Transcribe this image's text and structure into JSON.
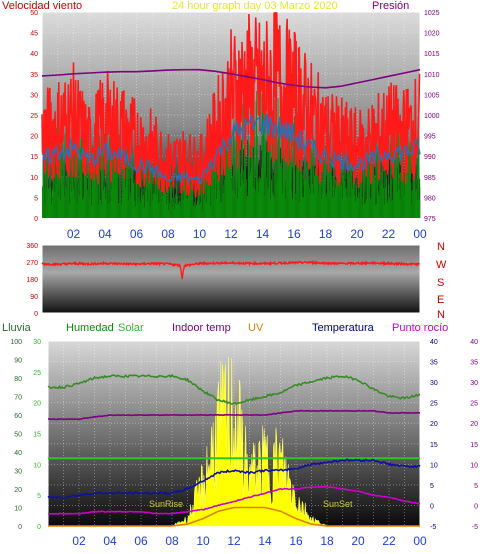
{
  "title": "24 hour graph day   03 Marzo 2020",
  "colors": {
    "wind": "#ff1a1a",
    "pressure": "#800080",
    "green": "#0a8a0a",
    "humidity": "#3a8a2a",
    "solar": "#2dbb2d",
    "indoor": "#800080",
    "uv": "#e08000",
    "temperature": "#000080",
    "dewpoint": "#cc00cc",
    "rain_axis": "#2dbb2d",
    "sun": "#ffff00",
    "sunlabel": "#cccc33",
    "hour": "#1f3fd6",
    "dir": "#cc0000"
  },
  "labels": {
    "wind": "Velocidad viento",
    "pressure": "Presión",
    "rain": "Lluvia",
    "humidity": "Humedad",
    "solar": "Solar",
    "indoor": "Indoor temp",
    "uv": "UV",
    "temperature": "Temperatura",
    "dewpoint": "Punto rocío",
    "sunrise": "SunRise",
    "sunset": "SunSet"
  },
  "hours": [
    "02",
    "04",
    "06",
    "08",
    "10",
    "12",
    "14",
    "16",
    "18",
    "20",
    "22",
    "00"
  ],
  "directions": [
    "N",
    "W",
    "S",
    "E",
    "N"
  ],
  "chart_data": [
    {
      "type": "line",
      "title": "24 hour graph day   03 Marzo 2020",
      "x": [
        0,
        1,
        2,
        3,
        4,
        5,
        6,
        7,
        8,
        9,
        10,
        11,
        12,
        13,
        14,
        15,
        16,
        17,
        18,
        19,
        20,
        21,
        22,
        23,
        24
      ],
      "ylim_left": [
        0,
        50
      ],
      "yticks_left": [
        0,
        5,
        10,
        15,
        20,
        25,
        30,
        35,
        40,
        45,
        50
      ],
      "ylim_right": [
        975,
        1025
      ],
      "yticks_right": [
        975,
        980,
        985,
        990,
        995,
        1000,
        1005,
        1010,
        1015,
        1020,
        1025
      ],
      "series": [
        {
          "name": "Velocidad viento",
          "axis": "left",
          "values": [
            22,
            25,
            27,
            20,
            26,
            24,
            21,
            19,
            15,
            16,
            14,
            23,
            33,
            36,
            35,
            37,
            33,
            28,
            23,
            21,
            19,
            21,
            24,
            23,
            26
          ]
        },
        {
          "name": "wind-average",
          "axis": "left",
          "values": [
            14,
            16,
            17,
            14,
            16,
            15,
            13,
            12,
            9,
            10,
            9,
            15,
            20,
            22,
            23,
            22,
            20,
            17,
            15,
            14,
            13,
            14,
            16,
            16,
            17
          ]
        },
        {
          "name": "wind-lull",
          "axis": "left",
          "values": [
            8,
            9,
            10,
            8,
            9,
            9,
            8,
            7,
            5,
            5,
            6,
            9,
            13,
            14,
            14,
            13,
            12,
            10,
            9,
            8,
            8,
            9,
            10,
            10,
            10
          ]
        },
        {
          "name": "Presión",
          "axis": "right",
          "values": [
            1009.5,
            1009.7,
            1010,
            1010.2,
            1010.4,
            1010.5,
            1010.5,
            1010.7,
            1010.9,
            1011,
            1011,
            1010.6,
            1010,
            1009.3,
            1008.6,
            1007.8,
            1007.2,
            1006.8,
            1006.6,
            1007,
            1007.8,
            1008.6,
            1009.4,
            1010.2,
            1011
          ]
        }
      ]
    },
    {
      "type": "line",
      "x": [
        0,
        1,
        2,
        3,
        4,
        5,
        6,
        7,
        8,
        9,
        10,
        11,
        12,
        13,
        14,
        15,
        16,
        17,
        18,
        19,
        20,
        21,
        22,
        23,
        24
      ],
      "ylim": [
        0,
        360
      ],
      "yticks": [
        0,
        90,
        180,
        270,
        360
      ],
      "series": [
        {
          "name": "direction",
          "values": [
            260,
            258,
            262,
            260,
            263,
            261,
            259,
            262,
            260,
            250,
            262,
            264,
            265,
            263,
            262,
            264,
            266,
            268,
            264,
            262,
            263,
            265,
            262,
            260,
            258
          ]
        }
      ]
    },
    {
      "type": "line",
      "x": [
        0,
        1,
        2,
        3,
        4,
        5,
        6,
        7,
        8,
        9,
        10,
        11,
        12,
        13,
        14,
        15,
        16,
        17,
        18,
        19,
        20,
        21,
        22,
        23,
        24
      ],
      "axis_rain": {
        "ylim": [
          0,
          30
        ],
        "yticks": [
          0,
          5,
          10,
          15,
          20,
          25,
          30
        ]
      },
      "axis_humidity": {
        "ylim": [
          0,
          100
        ],
        "yticks": [
          0,
          10,
          20,
          30,
          40,
          50,
          60,
          70,
          80,
          90,
          100
        ]
      },
      "axis_temp": {
        "ylim": [
          -5,
          40
        ],
        "yticks": [
          -5,
          0,
          5,
          10,
          15,
          20,
          25,
          30,
          35,
          40
        ]
      },
      "series": [
        {
          "name": "Humedad",
          "axis": "humidity",
          "values": [
            75,
            75,
            77,
            80,
            81,
            81,
            81,
            81,
            81,
            79,
            73,
            68,
            66,
            68,
            70,
            72,
            76,
            78,
            80,
            81,
            79,
            74,
            70,
            69,
            71
          ]
        },
        {
          "name": "Indoor temp",
          "axis": "temp",
          "values": [
            21,
            21,
            21,
            21.5,
            22,
            22,
            22,
            22,
            22,
            22,
            22,
            22,
            22,
            22,
            22,
            22.5,
            23,
            23,
            23,
            23,
            23,
            23,
            22.5,
            22.5,
            22.5
          ]
        },
        {
          "name": "Rain",
          "axis": "rain",
          "values": [
            11,
            11,
            11,
            11,
            11,
            11,
            11,
            11,
            11,
            11,
            11,
            11,
            11,
            11,
            11,
            11,
            11,
            11,
            11,
            11,
            11,
            11,
            11,
            11,
            11
          ]
        },
        {
          "name": "Temperatura",
          "axis": "temp",
          "values": [
            2,
            2,
            2.5,
            3,
            3,
            3,
            3,
            3,
            3,
            4,
            6,
            8,
            8.5,
            8,
            8.5,
            8.5,
            9,
            10,
            10.5,
            11,
            11,
            11,
            10,
            9.5,
            9.5
          ]
        },
        {
          "name": "Punto rocío",
          "axis": "temp",
          "values": [
            -2,
            -2,
            -2,
            -1.5,
            -1.5,
            -1.5,
            -1.5,
            -2,
            -2,
            -1.5,
            -1,
            0,
            1,
            2,
            3,
            4,
            4,
            4.5,
            4.5,
            4,
            3.5,
            2.5,
            2,
            1,
            0.5
          ]
        },
        {
          "name": "Solar",
          "axis": "humidity",
          "values": [
            0,
            0,
            0,
            0,
            0,
            0,
            0,
            0,
            0,
            5,
            30,
            70,
            80,
            35,
            45,
            45,
            20,
            5,
            0,
            0,
            0,
            0,
            0,
            0,
            0
          ]
        },
        {
          "name": "UV",
          "axis": "humidity",
          "values": [
            0,
            0,
            0,
            0,
            0,
            0,
            0,
            0,
            0,
            1,
            4,
            8,
            10,
            10,
            10,
            8,
            4,
            1,
            0,
            0,
            0,
            0,
            0,
            0,
            0
          ]
        }
      ]
    }
  ]
}
